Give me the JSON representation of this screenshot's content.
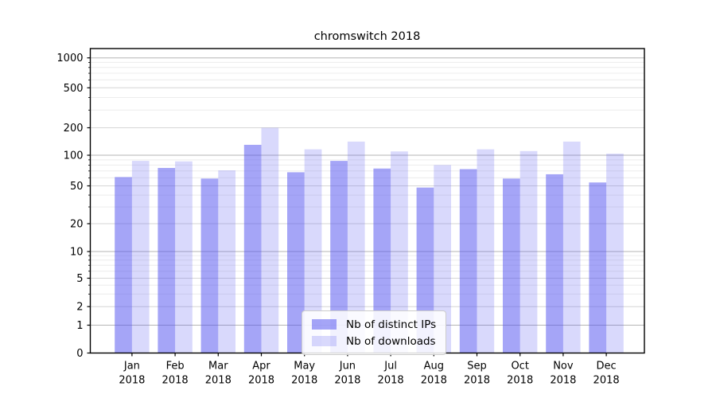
{
  "chart_data": {
    "type": "bar",
    "title": "chromswitch 2018",
    "categories": [
      "Jan 2018",
      "Feb 2018",
      "Mar 2018",
      "Apr 2018",
      "May 2018",
      "Jun 2018",
      "Jul 2018",
      "Aug 2018",
      "Sep 2018",
      "Oct 2018",
      "Nov 2018",
      "Dec 2018"
    ],
    "series": [
      {
        "name": "Nb of distinct IPs",
        "color": "#5252f0",
        "opacity": 0.52,
        "values": [
          61,
          75,
          59,
          130,
          68,
          88,
          74,
          48,
          73,
          59,
          65,
          54
        ]
      },
      {
        "name": "Nb of downloads",
        "color": "#5252f0",
        "opacity": 0.22,
        "values": [
          88,
          87,
          71,
          200,
          116,
          141,
          110,
          80,
          116,
          111,
          141,
          104
        ]
      }
    ],
    "y_axis": {
      "scale": "symlog",
      "tick_values": [
        0,
        1,
        2,
        5,
        10,
        20,
        50,
        100,
        200,
        500,
        1000
      ],
      "top_value": 1250
    },
    "x_axis": {
      "tick_label_lines": 2
    },
    "legend": {
      "position": "lower-center"
    },
    "grid": true,
    "colors": {
      "background": "#ffffff",
      "spine": "#000000",
      "tick_text": "#000000",
      "decade_gridline": "#b5b5b5",
      "labeled_gridline": "#d6d6d6",
      "minor_gridline": "#ececec"
    }
  }
}
